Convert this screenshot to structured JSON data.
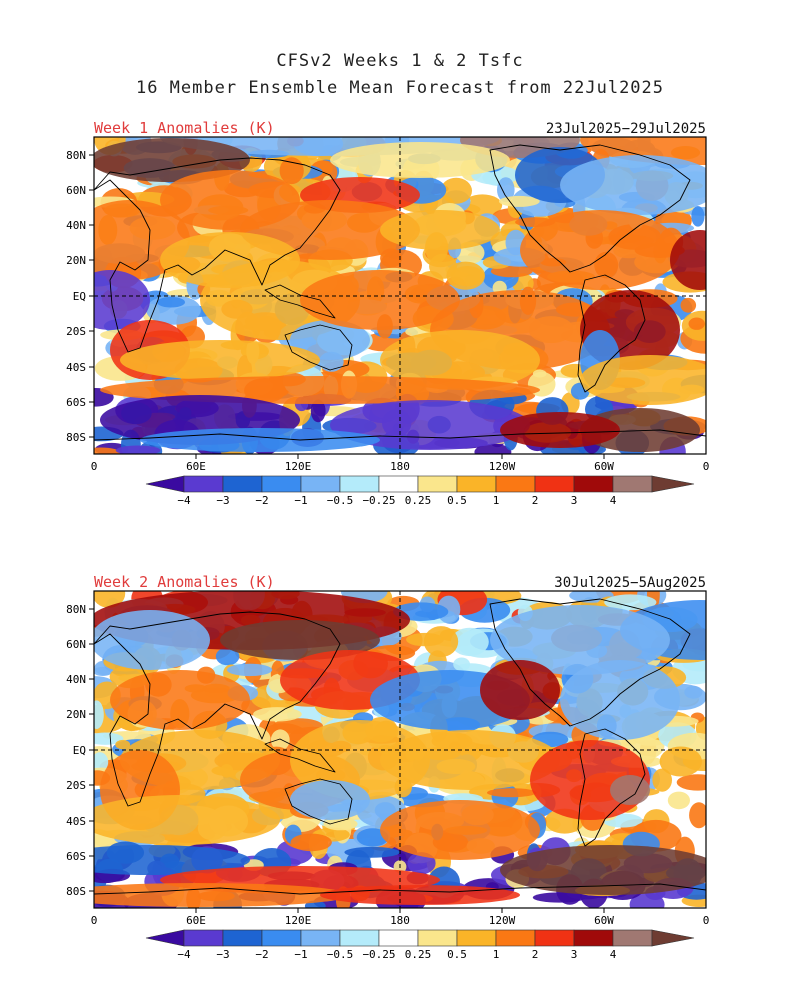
{
  "title_line1": "CFSv2 Weeks 1 & 2 Tsfc",
  "title_line2": "16 Member Ensemble Mean Forecast from 22Jul2025",
  "colors": {
    "title_text": "#222222",
    "panel_title": "#e03c3c",
    "frame": "#000000",
    "levels": [
      "#3a0aa0",
      "#5a3ad0",
      "#1e64d2",
      "#3a8cf0",
      "#78b4f5",
      "#b4ebfa",
      "#ffffff",
      "#fae68c",
      "#fab428",
      "#fa7814",
      "#f03214",
      "#a00a0a",
      "#a07872",
      "#6e3c32"
    ]
  },
  "legend": {
    "tick_labels": [
      "−4",
      "−3",
      "−2",
      "−1",
      "−0.5",
      "−0.25",
      "0.25",
      "0.5",
      "1",
      "2",
      "3",
      "4"
    ]
  },
  "maps": [
    {
      "label": "Week 1 Anomalies (K)",
      "date_range": "23Jul2025−29Jul2025",
      "lat_labels": [
        "80N",
        "60N",
        "40N",
        "20N",
        "EQ",
        "20S",
        "40S",
        "60S",
        "80S"
      ],
      "lon_labels": [
        "0",
        "60E",
        "120E",
        "180",
        "120W",
        "60W",
        "0"
      ]
    },
    {
      "label": "Week 2 Anomalies (K)",
      "date_range": "30Jul2025−5Aug2025",
      "lat_labels": [
        "80N",
        "60N",
        "40N",
        "20N",
        "EQ",
        "20S",
        "40S",
        "60S",
        "80S"
      ],
      "lon_labels": [
        "0",
        "60E",
        "120E",
        "180",
        "120W",
        "60W",
        "0"
      ]
    }
  ]
}
